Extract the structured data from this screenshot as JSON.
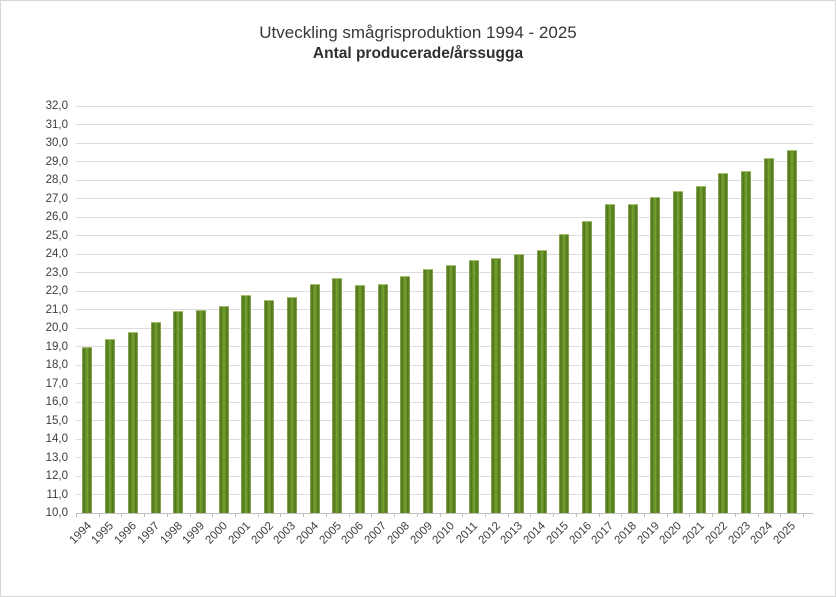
{
  "header": {
    "title": "Utveckling smågrisproduktion 1994 - 2025",
    "subtitle": "Antal producerade/årssugga"
  },
  "chart_data": {
    "type": "bar",
    "title": "Utveckling smågrisproduktion 1994 - 2025",
    "subtitle": "Antal producerade/årssugga",
    "xlabel": "",
    "ylabel": "",
    "legend": false,
    "grid": true,
    "categories": [
      "1994",
      "1995",
      "1996",
      "1997",
      "1998",
      "1999",
      "2000",
      "2001",
      "2002",
      "2003",
      "2004",
      "2005",
      "2006",
      "2007",
      "2008",
      "2009",
      "2010",
      "2011",
      "2012",
      "2013",
      "2014",
      "2015",
      "2016",
      "2017",
      "2018",
      "2019",
      "2020",
      "2021",
      "2022",
      "2023",
      "2024",
      "2025"
    ],
    "values": [
      19.0,
      19.4,
      19.8,
      20.3,
      20.9,
      21.0,
      21.2,
      21.8,
      21.5,
      21.7,
      22.4,
      22.7,
      22.3,
      22.4,
      22.8,
      23.2,
      23.4,
      23.7,
      23.8,
      24.0,
      24.2,
      25.1,
      25.8,
      26.7,
      26.7,
      27.1,
      27.4,
      27.7,
      28.4,
      28.5,
      29.2,
      29.6
    ],
    "ylim": [
      10,
      32
    ],
    "ytick_step": 1.0,
    "ytick_labels": [
      "32,0",
      "31,0",
      "30,0",
      "29,0",
      "28,0",
      "27,0",
      "26,0",
      "25,0",
      "24,0",
      "23,0",
      "22,0",
      "21,0",
      "20,0",
      "19,0",
      "18,0",
      "17,0",
      "16,0",
      "15,0",
      "14,0",
      "13,0",
      "12,0",
      "11,0",
      "10,0"
    ],
    "colors": {
      "bar_dark": "#4d741b",
      "bar_mid": "#6f9a2d",
      "bar_center_highlight": "#7aa636",
      "bar_edge_light": "#96b25c",
      "gridline": "#dcdcdc",
      "axis_line": "#bfbfbf",
      "text": "#3d3d3d",
      "background": "#ffffff",
      "border": "#d6d6d6"
    }
  }
}
